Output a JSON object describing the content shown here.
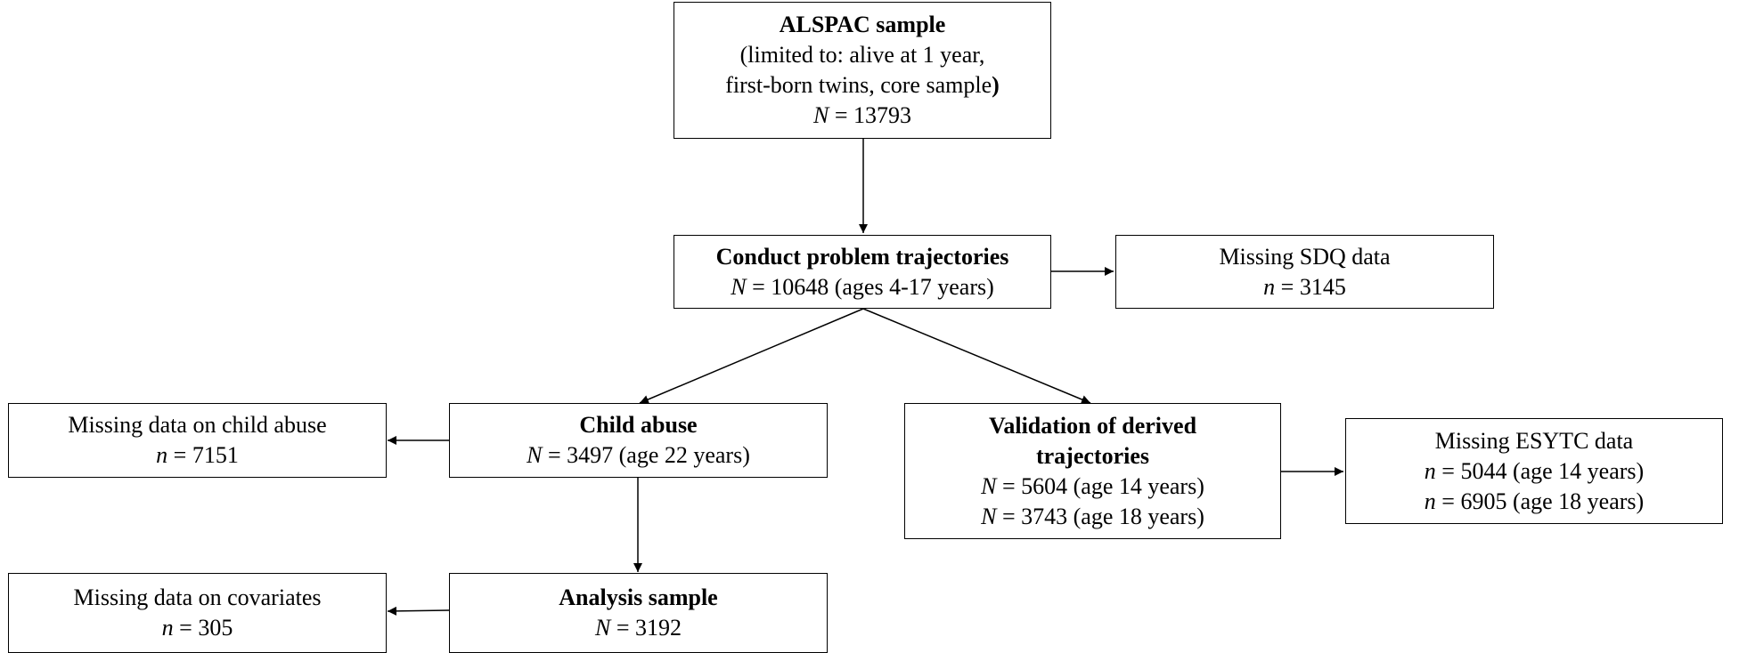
{
  "nodes": {
    "alspac": {
      "title": "ALSPAC sample",
      "detail_1": "(limited to: alive at 1 year,",
      "detail_2": "first-born twins, core sample",
      "detail_2_close": ")",
      "n_symbol": "N",
      "n_value": " = 13793"
    },
    "conduct": {
      "title": "Conduct problem trajectories",
      "n_symbol": "N",
      "n_value": " = 10648 (ages 4-17 years)"
    },
    "missing_sdq": {
      "title": "Missing SDQ data",
      "n_symbol": "n",
      "n_value": " = 3145"
    },
    "child_abuse": {
      "title": "Child abuse",
      "n_symbol": "N",
      "n_value": " = 3497 (age 22 years)"
    },
    "missing_abuse": {
      "title": "Missing data on child abuse",
      "n_symbol": "n",
      "n_value": " = 7151"
    },
    "validation": {
      "title_1": "Validation of derived",
      "title_2": "trajectories",
      "n1_symbol": "N",
      "n1_value": " = 5604 (age 14 years)",
      "n2_symbol": "N",
      "n2_value": " = 3743 (age 18 years)"
    },
    "missing_esytc": {
      "title": "Missing ESYTC data",
      "n1_symbol": "n",
      "n1_value": " = 5044 (age 14 years)",
      "n2_symbol": "n",
      "n2_value": " = 6905 (age 18 years)"
    },
    "analysis": {
      "title": "Analysis sample",
      "n_symbol": "N",
      "n_value": " = 3192"
    },
    "missing_covariates": {
      "title": "Missing data on covariates",
      "n_symbol": "n",
      "n_value": " = 305"
    }
  },
  "colors": {
    "stroke": "#000000",
    "background": "#ffffff"
  }
}
